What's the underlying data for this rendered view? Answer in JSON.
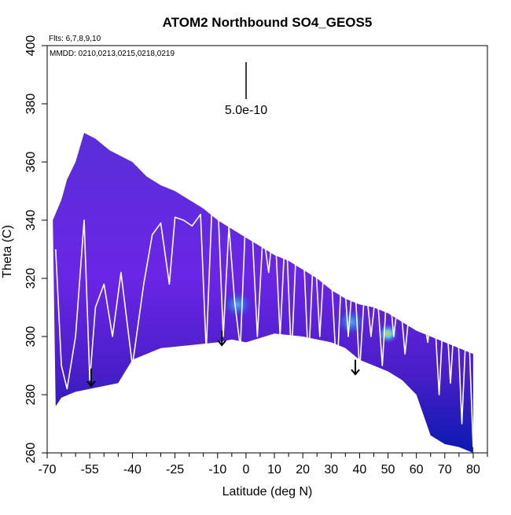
{
  "chart_data": {
    "type": "heatmap",
    "title": "ATOM2 Northbound SO4_GEOS5",
    "xlabel": "Latitude (deg N)",
    "ylabel": "Theta (C)",
    "xlim": [
      -70,
      85
    ],
    "ylim": [
      260,
      400
    ],
    "x_ticks_labeled": [
      -70,
      -55,
      -40,
      -25,
      -10,
      0,
      10,
      20,
      30,
      40,
      50,
      60,
      70,
      80
    ],
    "x_ticks_minor": [
      -65,
      -60,
      -50,
      -45,
      -35,
      -30,
      -20,
      -15,
      -5,
      5,
      15,
      25,
      35,
      45,
      55,
      65,
      75,
      85
    ],
    "y_ticks": [
      260,
      280,
      300,
      320,
      340,
      360,
      380,
      400
    ],
    "flights_note": "Flts: 6,7,8,9,10",
    "dates_note": "MMDD: 0210,0213,0215,0218,0219",
    "scale_bar_label": "5.0e-10",
    "curtain_top": [
      [
        -68,
        340
      ],
      [
        -65,
        347
      ],
      [
        -63,
        354
      ],
      [
        -60,
        360
      ],
      [
        -57,
        370
      ],
      [
        -53,
        368
      ],
      [
        -48,
        364
      ],
      [
        -40,
        360
      ],
      [
        -35,
        355
      ],
      [
        -30,
        352
      ],
      [
        -25,
        350
      ],
      [
        -20,
        347
      ],
      [
        -15,
        344
      ],
      [
        -10,
        340
      ],
      [
        -5,
        337
      ],
      [
        0,
        334
      ],
      [
        5,
        331
      ],
      [
        10,
        328
      ],
      [
        15,
        326
      ],
      [
        20,
        323
      ],
      [
        25,
        320
      ],
      [
        30,
        316
      ],
      [
        35,
        313
      ],
      [
        40,
        311
      ],
      [
        45,
        310
      ],
      [
        50,
        308
      ],
      [
        55,
        305
      ],
      [
        60,
        302
      ],
      [
        65,
        300
      ],
      [
        70,
        298
      ],
      [
        75,
        296
      ],
      [
        80,
        294
      ]
    ],
    "curtain_bottom": [
      [
        80,
        260
      ],
      [
        75,
        262
      ],
      [
        70,
        263
      ],
      [
        65,
        266
      ],
      [
        60,
        280
      ],
      [
        55,
        285
      ],
      [
        50,
        288
      ],
      [
        45,
        290
      ],
      [
        40,
        292
      ],
      [
        35,
        296
      ],
      [
        30,
        298
      ],
      [
        20,
        300
      ],
      [
        10,
        301
      ],
      [
        0,
        298
      ],
      [
        -5,
        299
      ],
      [
        -10,
        298
      ],
      [
        -20,
        297
      ],
      [
        -30,
        296
      ],
      [
        -40,
        292
      ],
      [
        -45,
        284
      ],
      [
        -50,
        283
      ],
      [
        -55,
        282
      ],
      [
        -60,
        281
      ],
      [
        -65,
        279
      ],
      [
        -67,
        276
      ]
    ],
    "hotspots": [
      {
        "lat": -3,
        "theta": 311,
        "value": "high"
      },
      {
        "lat": 37,
        "theta": 305,
        "value": "high"
      },
      {
        "lat": 50,
        "theta": 301,
        "value": "peak"
      }
    ],
    "flight_track": [
      [
        -67,
        330
      ],
      [
        -65,
        290
      ],
      [
        -63,
        282
      ],
      [
        -60,
        300
      ],
      [
        -57,
        340
      ],
      [
        -55,
        285
      ],
      [
        -53,
        310
      ],
      [
        -50,
        318
      ],
      [
        -47,
        300
      ],
      [
        -44,
        322
      ],
      [
        -40,
        290
      ],
      [
        -36,
        318
      ],
      [
        -33,
        335
      ],
      [
        -30,
        339
      ],
      [
        -27,
        318
      ],
      [
        -25,
        341
      ],
      [
        -22,
        340
      ],
      [
        -19,
        338
      ],
      [
        -16,
        342
      ],
      [
        -14,
        295
      ],
      [
        -12,
        344
      ],
      [
        -10,
        348
      ],
      [
        -8,
        300
      ],
      [
        -6,
        338
      ],
      [
        -4,
        312
      ],
      [
        -2,
        296
      ],
      [
        0,
        344
      ],
      [
        2,
        340
      ],
      [
        4,
        300
      ],
      [
        6,
        336
      ],
      [
        8,
        322
      ],
      [
        10,
        342
      ],
      [
        12,
        300
      ],
      [
        14,
        340
      ],
      [
        16,
        292
      ],
      [
        18,
        338
      ],
      [
        20,
        335
      ],
      [
        22,
        290
      ],
      [
        24,
        335
      ],
      [
        26,
        300
      ],
      [
        28,
        334
      ],
      [
        30,
        322
      ],
      [
        32,
        286
      ],
      [
        34,
        330
      ],
      [
        36,
        300
      ],
      [
        38,
        325
      ],
      [
        40,
        288
      ],
      [
        42,
        320
      ],
      [
        44,
        300
      ],
      [
        46,
        318
      ],
      [
        48,
        290
      ],
      [
        50,
        322
      ],
      [
        52,
        300
      ],
      [
        54,
        316
      ],
      [
        56,
        294
      ],
      [
        58,
        314
      ],
      [
        60,
        306
      ],
      [
        62,
        310
      ],
      [
        64,
        298
      ],
      [
        66,
        314
      ],
      [
        68,
        280
      ],
      [
        70,
        318
      ],
      [
        72,
        284
      ],
      [
        74,
        316
      ],
      [
        76,
        270
      ],
      [
        78,
        314
      ],
      [
        80,
        262
      ]
    ],
    "arrows": [
      {
        "lat": -54.5,
        "theta_from": 289,
        "theta_to": 283
      },
      {
        "lat": -8.5,
        "theta_from": 302,
        "theta_to": 297
      },
      {
        "lat": 38.5,
        "theta_from": 292,
        "theta_to": 287
      }
    ]
  }
}
